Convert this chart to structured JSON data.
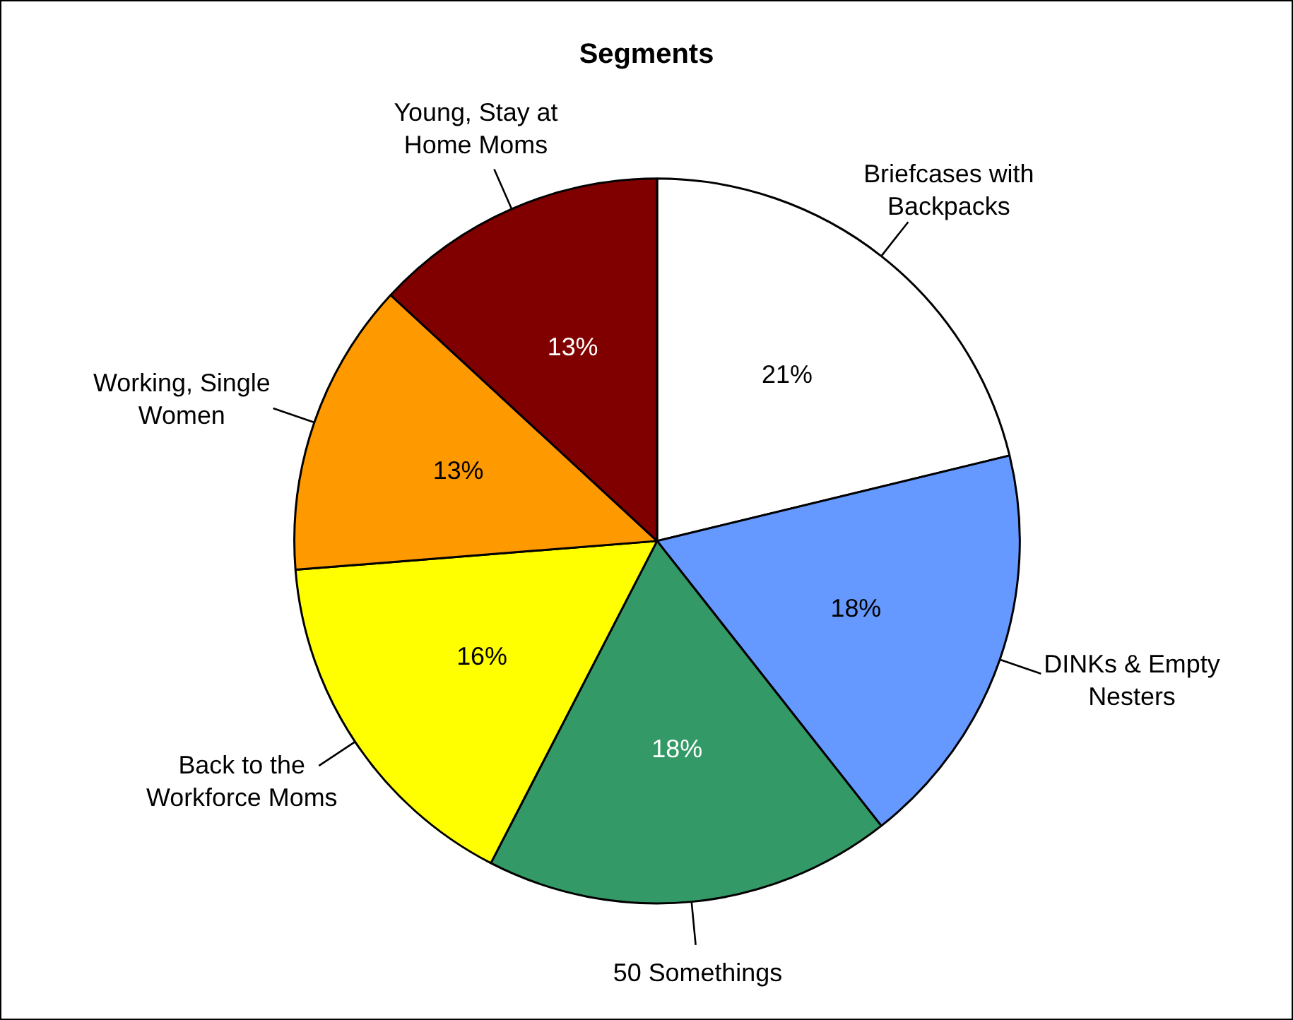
{
  "chart_data": {
    "type": "pie",
    "title": "Segments",
    "categories": [
      "Briefcases with Backpacks",
      "DINKs & Empty Nesters",
      "50 Somethings",
      "Back to the Workforce Moms",
      "Working, Single Women",
      "Young, Stay at Home Moms"
    ],
    "values": [
      21,
      18,
      18,
      16,
      13,
      13
    ],
    "colors": [
      "#ffffff",
      "#6699ff",
      "#339966",
      "#ffff00",
      "#ff9900",
      "#800000"
    ],
    "value_labels": [
      "21%",
      "18%",
      "18%",
      "16%",
      "13%",
      "13%"
    ],
    "legend": false
  }
}
